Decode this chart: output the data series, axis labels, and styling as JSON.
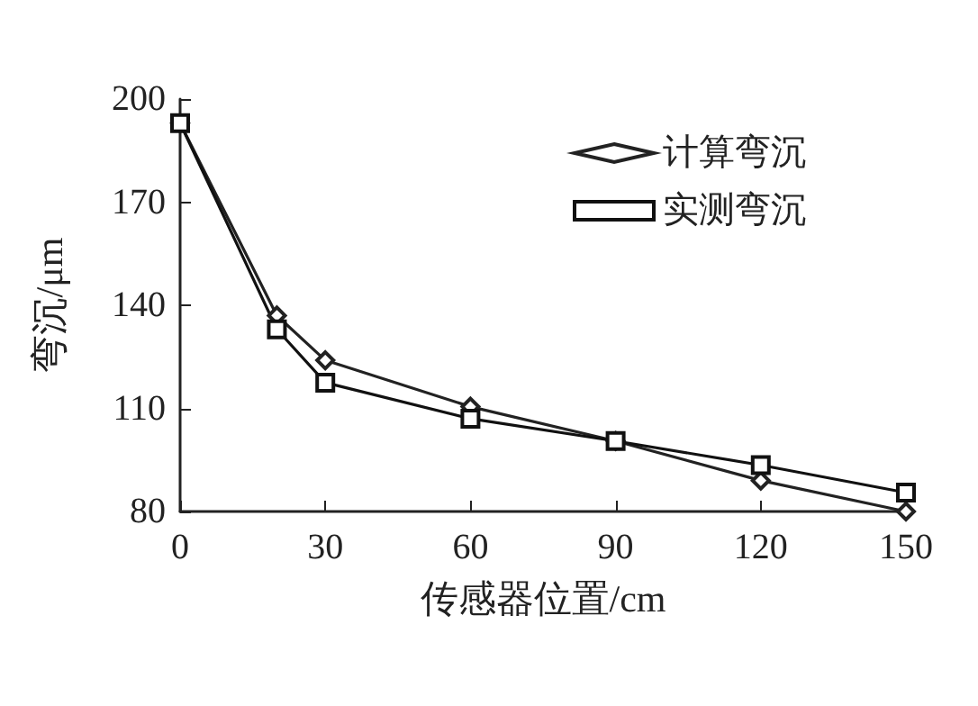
{
  "chart_data": {
    "type": "line",
    "xlabel": "传感器位置/cm",
    "ylabel": "弯沉/μm",
    "x": [
      0,
      20,
      30,
      60,
      90,
      120,
      150
    ],
    "series": [
      {
        "name": "计算弯沉",
        "color": "#222222",
        "marker": "diamond",
        "values": [
          193,
          137,
          124,
          110.5,
          100.5,
          89,
          80
        ]
      },
      {
        "name": "实测弯沉",
        "color": "#111111",
        "marker": "square",
        "values": [
          193,
          133,
          117.5,
          107,
          100.5,
          93.5,
          85.5
        ]
      }
    ],
    "xlim": [
      0,
      150
    ],
    "xticks": [
      0,
      30,
      60,
      90,
      120,
      150
    ],
    "ylim": [
      80,
      200
    ],
    "yticks": [
      80,
      110,
      140,
      170,
      200
    ],
    "grid": false,
    "legend": "top right",
    "line_style": "solid"
  }
}
